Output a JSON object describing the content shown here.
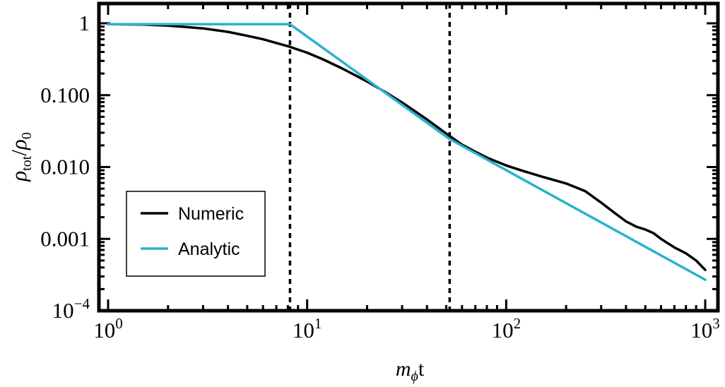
{
  "chart_data": {
    "type": "line",
    "x_scale": "log",
    "y_scale": "log",
    "xlim": [
      1,
      1000
    ],
    "ylim": [
      0.0001,
      1
    ],
    "x_ticks": [
      {
        "value": 1,
        "base": "10",
        "exp": "0"
      },
      {
        "value": 10,
        "base": "10",
        "exp": "1"
      },
      {
        "value": 100,
        "base": "10",
        "exp": "2"
      },
      {
        "value": 1000,
        "base": "10",
        "exp": "3"
      }
    ],
    "y_ticks": [
      {
        "value": 1,
        "text": "1"
      },
      {
        "value": 0.1,
        "text": "0.100"
      },
      {
        "value": 0.01,
        "text": "0.010"
      },
      {
        "value": 0.001,
        "text": "0.001"
      },
      {
        "value": 0.0001,
        "base": "10",
        "exp": "−4"
      }
    ],
    "xlabel": {
      "var": "m",
      "sub": "ϕ",
      "suffix": "t"
    },
    "ylabel": {
      "var": "ρ",
      "sub": "tot",
      "slash": "/",
      "var2": "ρ",
      "sub2": "0"
    },
    "vlines": [
      8.2,
      52
    ],
    "legend": {
      "position": "bottom-left"
    },
    "series": [
      {
        "name": "Numeric",
        "color": "#000000",
        "points": [
          [
            1,
            0.97
          ],
          [
            1.5,
            0.96
          ],
          [
            2,
            0.93
          ],
          [
            3,
            0.85
          ],
          [
            4,
            0.76
          ],
          [
            5,
            0.67
          ],
          [
            6,
            0.6
          ],
          [
            8,
            0.48
          ],
          [
            10,
            0.39
          ],
          [
            12,
            0.315
          ],
          [
            15,
            0.235
          ],
          [
            20,
            0.155
          ],
          [
            25,
            0.108
          ],
          [
            30,
            0.079
          ],
          [
            40,
            0.046
          ],
          [
            52,
            0.027
          ],
          [
            60,
            0.0205
          ],
          [
            70,
            0.0163
          ],
          [
            80,
            0.0135
          ],
          [
            100,
            0.0105
          ],
          [
            120,
            0.0089
          ],
          [
            150,
            0.0074
          ],
          [
            200,
            0.0059
          ],
          [
            250,
            0.0046
          ],
          [
            300,
            0.0032
          ],
          [
            350,
            0.0023
          ],
          [
            400,
            0.00175
          ],
          [
            450,
            0.00148
          ],
          [
            500,
            0.00135
          ],
          [
            550,
            0.0012
          ],
          [
            600,
            0.001
          ],
          [
            700,
            0.00076
          ],
          [
            800,
            0.00063
          ],
          [
            900,
            0.0005
          ],
          [
            1000,
            0.00037
          ]
        ]
      },
      {
        "name": "Analytic",
        "color": "#29b3cc",
        "points": [
          [
            1,
            0.97
          ],
          [
            8.2,
            0.97
          ],
          [
            52,
            0.0245
          ],
          [
            1000,
            0.00027
          ]
        ]
      }
    ]
  }
}
